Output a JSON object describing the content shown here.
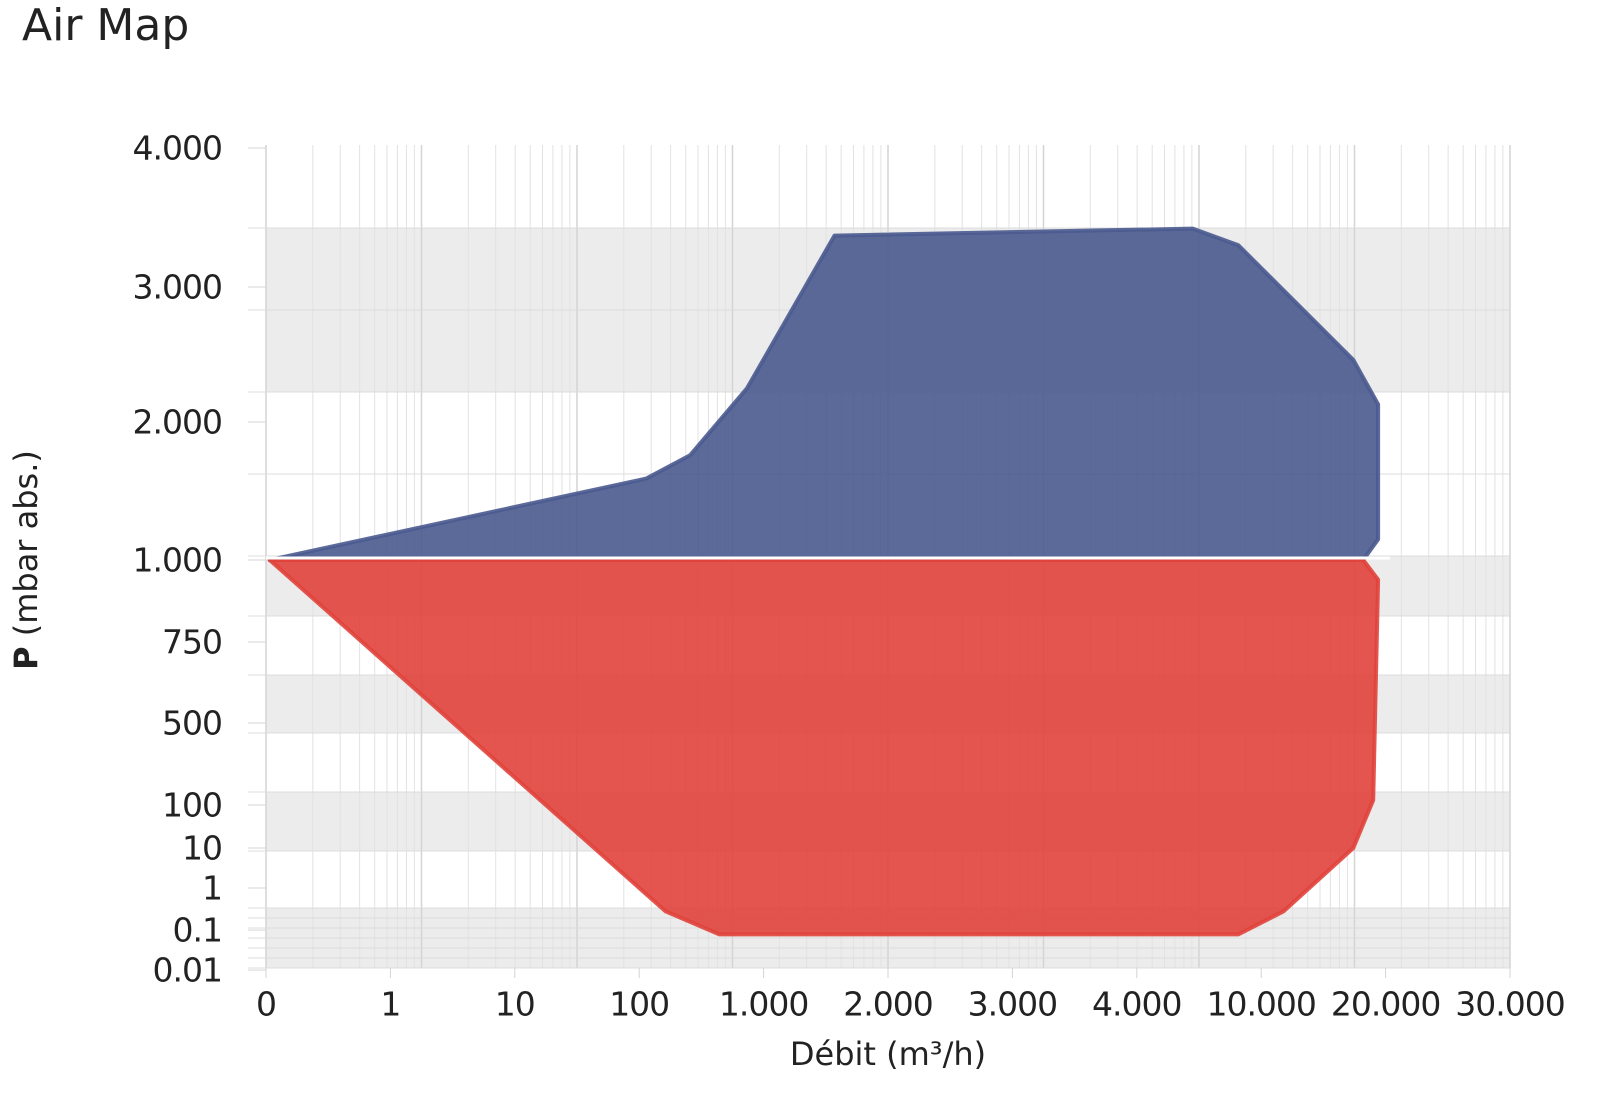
{
  "chart_data": {
    "type": "area",
    "title": "Air Map",
    "xlabel": "Débit (m³/h)",
    "ylabel_symbol": "P",
    "ylabel": "(mbar abs.)",
    "xticks": [
      0,
      1,
      10,
      100,
      {
        "value": 1000,
        "label": "1.000"
      },
      {
        "value": 2000,
        "label": "2.000"
      },
      {
        "value": 3000,
        "label": "3.000"
      },
      {
        "value": 4000,
        "label": "4.000"
      },
      {
        "value": 10000,
        "label": "10.000"
      },
      {
        "value": 20000,
        "label": "20.000"
      },
      {
        "value": 30000,
        "label": "30.000"
      }
    ],
    "yticks": [
      0.01,
      0.1,
      1,
      10,
      100,
      500,
      750,
      {
        "value": 1000,
        "label": "1.000"
      },
      {
        "value": 2000,
        "label": "2.000"
      },
      {
        "value": 3000,
        "label": "3.000"
      },
      {
        "value": 4000,
        "label": "4.000"
      }
    ],
    "grid": true,
    "areas": [
      {
        "color": "#4a5a8f",
        "x": [
          0.03,
          150,
          470,
          880,
          1570,
          6700,
          8900,
          17400,
          19400,
          19400,
          18200
        ],
        "y": [
          1000,
          1590,
          1760,
          2250,
          3370,
          3420,
          3300,
          2460,
          2130,
          1150,
          1000
        ]
      },
      {
        "color": "#e0433b",
        "x": [
          0.03,
          290,
          680,
          8900,
          11800,
          17400,
          19000,
          19400,
          18200
        ],
        "y": [
          1000,
          0.5,
          0.09,
          0.09,
          0.5,
          10,
          124,
          940,
          1000
        ]
      }
    ]
  }
}
